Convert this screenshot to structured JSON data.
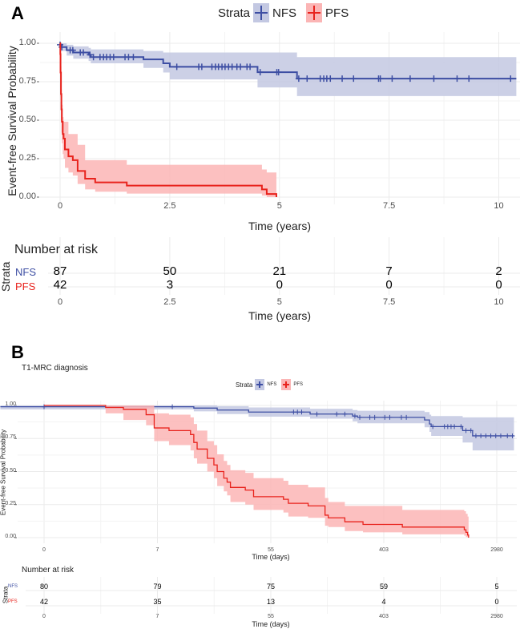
{
  "colors": {
    "NFS": "#3d4ea3",
    "NFS_fill": "#c3c8e2",
    "PFS": "#e8231d",
    "PFS_fill": "#fbb5b5",
    "grid": "#ebebeb"
  },
  "chart_data": [
    {
      "panel": "A",
      "type": "line",
      "subtype": "kaplan-meier",
      "title": "",
      "xlabel": "Time (years)",
      "ylabel": "Event-free Survival Probability",
      "xlim": [
        -0.45,
        10.5
      ],
      "ylim": [
        -0.045,
        1.07
      ],
      "xticks": [
        0,
        2.5,
        5,
        7.5,
        10
      ],
      "xtick_labels": [
        "0",
        "2.5",
        "5",
        "7.5",
        "10"
      ],
      "yticks": [
        0,
        0.25,
        0.5,
        0.75,
        1
      ],
      "ytick_labels": [
        "0.00",
        "0.25",
        "0.50",
        "0.75",
        "1.00"
      ],
      "grid": true,
      "legend": {
        "title": "Strata",
        "position": "top",
        "entries": [
          "NFS",
          "PFS"
        ]
      },
      "series": [
        {
          "name": "NFS",
          "end": 10.4,
          "steps": [
            [
              0,
              0.99,
              0.97,
              1.0
            ],
            [
              0.02,
              0.975,
              0.95,
              1.0
            ],
            [
              0.15,
              0.955,
              0.92,
              0.99
            ],
            [
              0.3,
              0.94,
              0.9,
              0.98
            ],
            [
              0.65,
              0.925,
              0.885,
              0.97
            ],
            [
              0.7,
              0.91,
              0.87,
              0.96
            ],
            [
              1.9,
              0.895,
              0.84,
              0.95
            ],
            [
              2.35,
              0.87,
              0.81,
              0.94
            ],
            [
              2.5,
              0.847,
              0.765,
              0.94
            ],
            [
              4.5,
              0.812,
              0.713,
              0.94
            ],
            [
              5.4,
              0.77,
              0.657,
              0.91
            ]
          ],
          "censored": [
            0,
            0.04,
            0.23,
            0.29,
            0.46,
            0.53,
            0.68,
            0.76,
            0.91,
            0.99,
            1.06,
            1.14,
            1.22,
            1.48,
            1.56,
            1.67,
            2.66,
            3.16,
            3.23,
            3.46,
            3.54,
            3.61,
            3.69,
            3.76,
            3.84,
            3.92,
            4.03,
            4.11,
            4.26,
            4.33,
            4.56,
            4.94,
            4.98,
            5.44,
            5.63,
            5.93,
            6.01,
            6.08,
            6.16,
            6.43,
            6.69,
            7.26,
            7.3,
            7.57,
            7.98,
            8.52,
            9.05,
            9.32,
            10.27
          ]
        },
        {
          "name": "PFS",
          "end": 4.93,
          "steps": [
            [
              0,
              1,
              1,
              1
            ],
            [
              0.005,
              0.93,
              0.8,
              1.0
            ],
            [
              0.01,
              0.81,
              0.65,
              0.95
            ],
            [
              0.02,
              0.67,
              0.5,
              0.85
            ],
            [
              0.03,
              0.57,
              0.42,
              0.7
            ],
            [
              0.04,
              0.49,
              0.35,
              0.6
            ],
            [
              0.06,
              0.41,
              0.28,
              0.52
            ],
            [
              0.08,
              0.38,
              0.25,
              0.49
            ],
            [
              0.11,
              0.31,
              0.19,
              0.49
            ],
            [
              0.19,
              0.265,
              0.16,
              0.41
            ],
            [
              0.29,
              0.24,
              0.14,
              0.41
            ],
            [
              0.4,
              0.17,
              0.085,
              0.34
            ],
            [
              0.57,
              0.12,
              0.05,
              0.24
            ],
            [
              0.8,
              0.096,
              0.035,
              0.24
            ],
            [
              1.52,
              0.075,
              0.023,
              0.21
            ],
            [
              4.6,
              0.05,
              0.01,
              0.18
            ],
            [
              4.71,
              0.02,
              0,
              0.16
            ],
            [
              4.93,
              0,
              0,
              0
            ]
          ],
          "censored": []
        }
      ],
      "risk_table": {
        "title": "Number at risk",
        "strata_label": "Strata",
        "xlabel": "Time (years)",
        "times": [
          0,
          2.5,
          5,
          7.5,
          10
        ],
        "tick_labels": [
          "0",
          "2.5",
          "5",
          "7.5",
          "10"
        ],
        "rows": [
          {
            "name": "NFS",
            "values": [
              "87",
              "50",
              "21",
              "7",
              "2"
            ]
          },
          {
            "name": "PFS",
            "values": [
              "42",
              "3",
              "0",
              "0",
              "0"
            ]
          }
        ]
      }
    },
    {
      "panel": "B",
      "type": "line",
      "subtype": "kaplan-meier",
      "title": "T1-MRC diagnosis",
      "xlabel": "Time (days)",
      "ylabel": "Event-free Survival Probability",
      "x_scale": "transformed (ticks equally spaced)",
      "xticks": [
        0,
        7,
        55,
        403,
        2980
      ],
      "xtick_labels": [
        "0",
        "7",
        "55",
        "403",
        "2980"
      ],
      "yticks": [
        0,
        0.25,
        0.5,
        0.75,
        1
      ],
      "ytick_labels": [
        "0.00",
        "0.25",
        "0.50",
        "0.75",
        "1.00"
      ],
      "ylim": [
        -0.04,
        1.07
      ],
      "grid": true,
      "legend": {
        "title": "Strata",
        "position": "top",
        "entries": [
          "NFS",
          "PFS"
        ]
      },
      "series": [
        {
          "name": "NFS",
          "end": 3373,
          "steps": [
            [
              -2.7,
              0.99,
              0.97,
              1.0
            ],
            [
              22.4,
              0.98,
              0.955,
              1.0
            ],
            [
              32.3,
              0.965,
              0.935,
              0.995
            ],
            [
              45.6,
              0.95,
              0.915,
              0.985
            ],
            [
              176,
              0.935,
              0.9,
              0.975
            ],
            [
              307,
              0.92,
              0.88,
              0.965
            ],
            [
              322,
              0.91,
              0.865,
              0.96
            ],
            [
              1333,
              0.89,
              0.835,
              0.95
            ],
            [
              1446,
              0.86,
              0.8,
              0.93
            ],
            [
              1484,
              0.84,
              0.77,
              0.92
            ],
            [
              2202,
              0.81,
              0.72,
              0.91
            ],
            [
              2429,
              0.77,
              0.66,
              0.91
            ]
          ],
          "censored": [
            0,
            13.3,
            125,
            137,
            150,
            197,
            258,
            283,
            314,
            329,
            360,
            375,
            426,
            539,
            804,
            917,
            1521,
            1786,
            1862,
            1937,
            2013,
            2164,
            2277,
            2390,
            2504,
            2617,
            2731,
            2844,
            2957,
            3071,
            3222,
            3336
          ]
        },
        {
          "name": "PFS",
          "end": 2337,
          "steps": [
            [
              0,
              1,
              1,
              1
            ],
            [
              3.8,
              0.985,
              0.94,
              1.0
            ],
            [
              4.9,
              0.97,
              0.89,
              1.0
            ],
            [
              6.3,
              0.93,
              0.85,
              1.0
            ],
            [
              6.8,
              0.83,
              0.73,
              0.94
            ],
            [
              11.9,
              0.81,
              0.7,
              0.93
            ],
            [
              21,
              0.78,
              0.66,
              0.91
            ],
            [
              22.4,
              0.72,
              0.6,
              0.86
            ],
            [
              23.8,
              0.67,
              0.56,
              0.81
            ],
            [
              28.1,
              0.6,
              0.5,
              0.73
            ],
            [
              30.9,
              0.55,
              0.45,
              0.7
            ],
            [
              32.3,
              0.5,
              0.39,
              0.63
            ],
            [
              35.1,
              0.45,
              0.35,
              0.58
            ],
            [
              36.5,
              0.42,
              0.32,
              0.55
            ],
            [
              37.9,
              0.38,
              0.27,
              0.51
            ],
            [
              44.2,
              0.36,
              0.25,
              0.49
            ],
            [
              47.7,
              0.31,
              0.21,
              0.45
            ],
            [
              93.9,
              0.29,
              0.19,
              0.43
            ],
            [
              109,
              0.26,
              0.16,
              0.4
            ],
            [
              170,
              0.24,
              0.15,
              0.38
            ],
            [
              222,
              0.17,
              0.09,
              0.3
            ],
            [
              232,
              0.15,
              0.08,
              0.27
            ],
            [
              283,
              0.12,
              0.05,
              0.24
            ],
            [
              339,
              0.1,
              0.04,
              0.24
            ],
            [
              826,
              0.08,
              0.025,
              0.21
            ],
            [
              2239,
              0.06,
              0.015,
              0.2
            ],
            [
              2277,
              0.04,
              0.005,
              0.18
            ],
            [
              2315,
              0.02,
              0,
              0.16
            ],
            [
              2337,
              0,
              0,
              0
            ]
          ],
          "censored": []
        }
      ],
      "risk_table": {
        "title": "Number at risk",
        "strata_label": "Strata",
        "xlabel": "Time (days)",
        "times": [
          0,
          7,
          55,
          403,
          2980
        ],
        "tick_labels": [
          "0",
          "7",
          "55",
          "403",
          "2980"
        ],
        "rows": [
          {
            "name": "NFS",
            "values": [
              "80",
              "79",
              "75",
              "59",
              "5"
            ]
          },
          {
            "name": "PFS",
            "values": [
              "42",
              "35",
              "13",
              "4",
              "0"
            ]
          }
        ]
      }
    }
  ],
  "labels": {
    "panelA": "A",
    "panelB": "B"
  }
}
